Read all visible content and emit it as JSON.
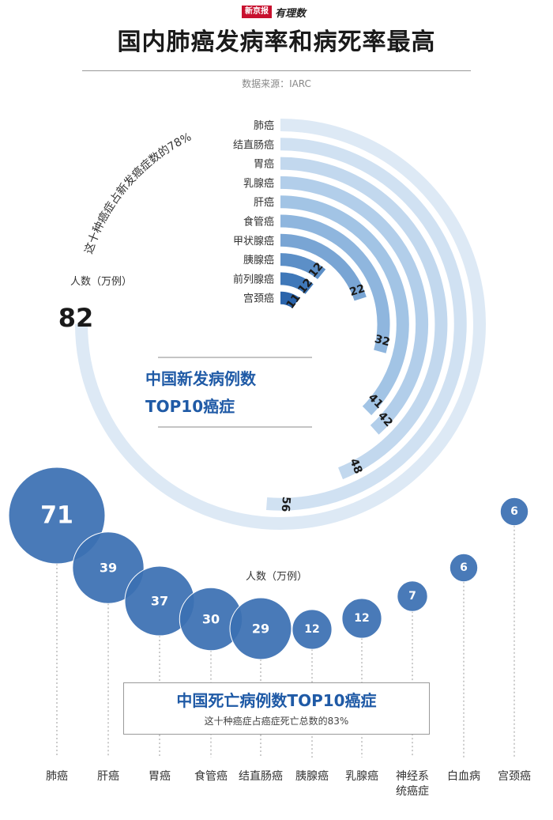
{
  "header": {
    "brand_paper": "新京报",
    "brand_suffix": "有理数",
    "title": "国内肺癌发病率和病死率最高",
    "source": "数据来源：IARC"
  },
  "colors": {
    "death_circle": "#3b70b3",
    "title_blue": "#1f5aa6",
    "axis_text": "#333333",
    "new_case_ramp": [
      "#dde9f5",
      "#d0e1f2",
      "#c2d8ee",
      "#b2ceea",
      "#a2c4e5",
      "#8fb6de",
      "#79a5d4",
      "#5c8fc7",
      "#3f78b9",
      "#2a64ab"
    ]
  },
  "chart_data": [
    {
      "type": "radial-bar",
      "title": "中国新发病例数TOP10癌症",
      "unit_label": "人数（万例）",
      "annotation": "这十种癌症占新发癌症数的78%",
      "title_lines": [
        "中国新发病例数",
        "TOP10癌症"
      ],
      "categories": [
        "肺癌",
        "结直肠癌",
        "胃癌",
        "乳腺癌",
        "肝癌",
        "食管癌",
        "甲状腺癌",
        "胰腺癌",
        "前列腺癌",
        "宫颈癌"
      ],
      "values": [
        82,
        56,
        48,
        42,
        41,
        32,
        22,
        12,
        12,
        11
      ],
      "value_labels": [
        "82",
        "56",
        "48",
        "42",
        "41",
        "32",
        "22",
        "12",
        "12",
        "11"
      ]
    },
    {
      "type": "bubble",
      "title": "中国死亡病例数TOP10癌症",
      "subtitle": "这十种癌症占癌症死亡总数的83%",
      "unit_label": "人数（万例）",
      "categories": [
        "肺癌",
        "肝癌",
        "胃癌",
        "食管癌",
        "结直肠癌",
        "胰腺癌",
        "乳腺癌",
        "神经系统癌症",
        "白血病",
        "宫颈癌"
      ],
      "category_labels": [
        [
          "肺癌"
        ],
        [
          "肝癌"
        ],
        [
          "胃癌"
        ],
        [
          "食管癌"
        ],
        [
          "结直肠癌"
        ],
        [
          "胰腺癌"
        ],
        [
          "乳腺癌"
        ],
        [
          "神经系",
          "统癌症"
        ],
        [
          "白血病"
        ],
        [
          "宫颈癌"
        ]
      ],
      "values": [
        71,
        39,
        37,
        30,
        29,
        12,
        12,
        7,
        6,
        6
      ],
      "value_labels": [
        "71",
        "39",
        "37",
        "30",
        "29",
        "12",
        "12",
        "7",
        "6",
        "6"
      ]
    }
  ]
}
